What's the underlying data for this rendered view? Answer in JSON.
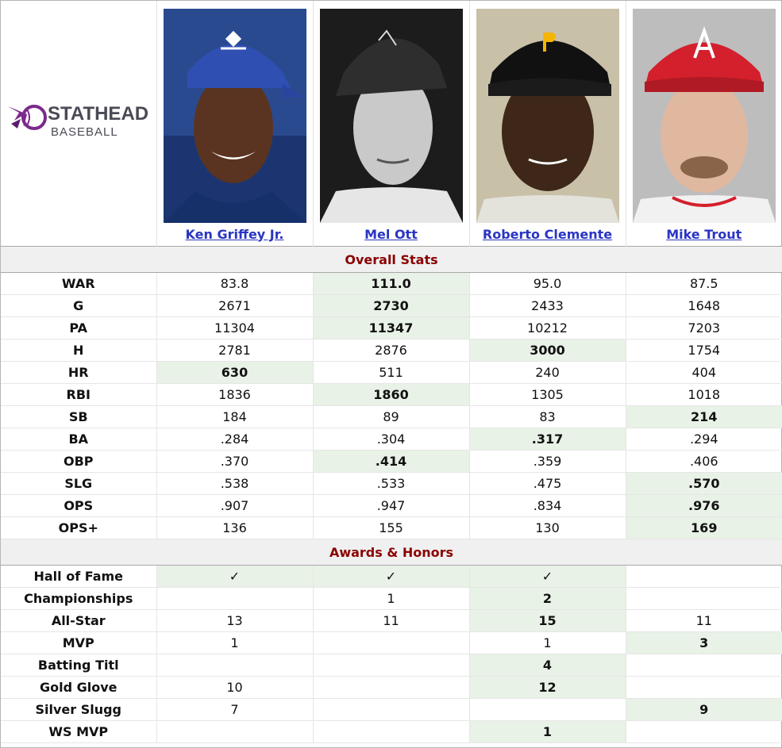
{
  "brand": {
    "word1": "STATHEAD",
    "word2": "BASEBALL"
  },
  "players": [
    {
      "name": "Ken Griffey Jr."
    },
    {
      "name": "Mel Ott"
    },
    {
      "name": "Roberto Clemente"
    },
    {
      "name": "Mike Trout"
    }
  ],
  "sections": [
    {
      "title": "Overall Stats",
      "rows": [
        {
          "label": "WAR",
          "values": [
            "83.8",
            "111.0",
            "95.0",
            "87.5"
          ],
          "best": [
            1
          ]
        },
        {
          "label": "G",
          "values": [
            "2671",
            "2730",
            "2433",
            "1648"
          ],
          "best": [
            1
          ]
        },
        {
          "label": "PA",
          "values": [
            "11304",
            "11347",
            "10212",
            "7203"
          ],
          "best": [
            1
          ]
        },
        {
          "label": "H",
          "values": [
            "2781",
            "2876",
            "3000",
            "1754"
          ],
          "best": [
            2
          ]
        },
        {
          "label": "HR",
          "values": [
            "630",
            "511",
            "240",
            "404"
          ],
          "best": [
            0
          ]
        },
        {
          "label": "RBI",
          "values": [
            "1836",
            "1860",
            "1305",
            "1018"
          ],
          "best": [
            1
          ]
        },
        {
          "label": "SB",
          "values": [
            "184",
            "89",
            "83",
            "214"
          ],
          "best": [
            3
          ]
        },
        {
          "label": "BA",
          "values": [
            ".284",
            ".304",
            ".317",
            ".294"
          ],
          "best": [
            2
          ]
        },
        {
          "label": "OBP",
          "values": [
            ".370",
            ".414",
            ".359",
            ".406"
          ],
          "best": [
            1
          ]
        },
        {
          "label": "SLG",
          "values": [
            ".538",
            ".533",
            ".475",
            ".570"
          ],
          "best": [
            3
          ]
        },
        {
          "label": "OPS",
          "values": [
            ".907",
            ".947",
            ".834",
            ".976"
          ],
          "best": [
            3
          ]
        },
        {
          "label": "OPS+",
          "values": [
            "136",
            "155",
            "130",
            "169"
          ],
          "best": [
            3
          ]
        }
      ]
    },
    {
      "title": "Awards & Honors",
      "rows": [
        {
          "label": "Hall of Fame",
          "values": [
            "✓",
            "✓",
            "✓",
            ""
          ],
          "best": [
            0,
            1,
            2
          ]
        },
        {
          "label": "Championships",
          "values": [
            "",
            "1",
            "2",
            ""
          ],
          "best": [
            2
          ]
        },
        {
          "label": "All-Star",
          "values": [
            "13",
            "11",
            "15",
            "11"
          ],
          "best": [
            2
          ]
        },
        {
          "label": "MVP",
          "values": [
            "1",
            "",
            "1",
            "3"
          ],
          "best": [
            3
          ]
        },
        {
          "label": "Batting Titl",
          "values": [
            "",
            "",
            "4",
            ""
          ],
          "best": [
            2
          ]
        },
        {
          "label": "Gold Glove",
          "values": [
            "10",
            "",
            "12",
            ""
          ],
          "best": [
            2
          ]
        },
        {
          "label": "Silver Slugg",
          "values": [
            "7",
            "",
            "",
            "9"
          ],
          "best": [
            3
          ]
        },
        {
          "label": "WS MVP",
          "values": [
            "",
            "",
            "1",
            ""
          ],
          "best": [
            2
          ]
        }
      ]
    }
  ],
  "colors": {
    "accent_link": "#2a35c2",
    "section_title": "#8b0000",
    "best_bg": "#e8f2e6"
  },
  "icons": [
    "stathead-logo",
    "check-mark"
  ]
}
